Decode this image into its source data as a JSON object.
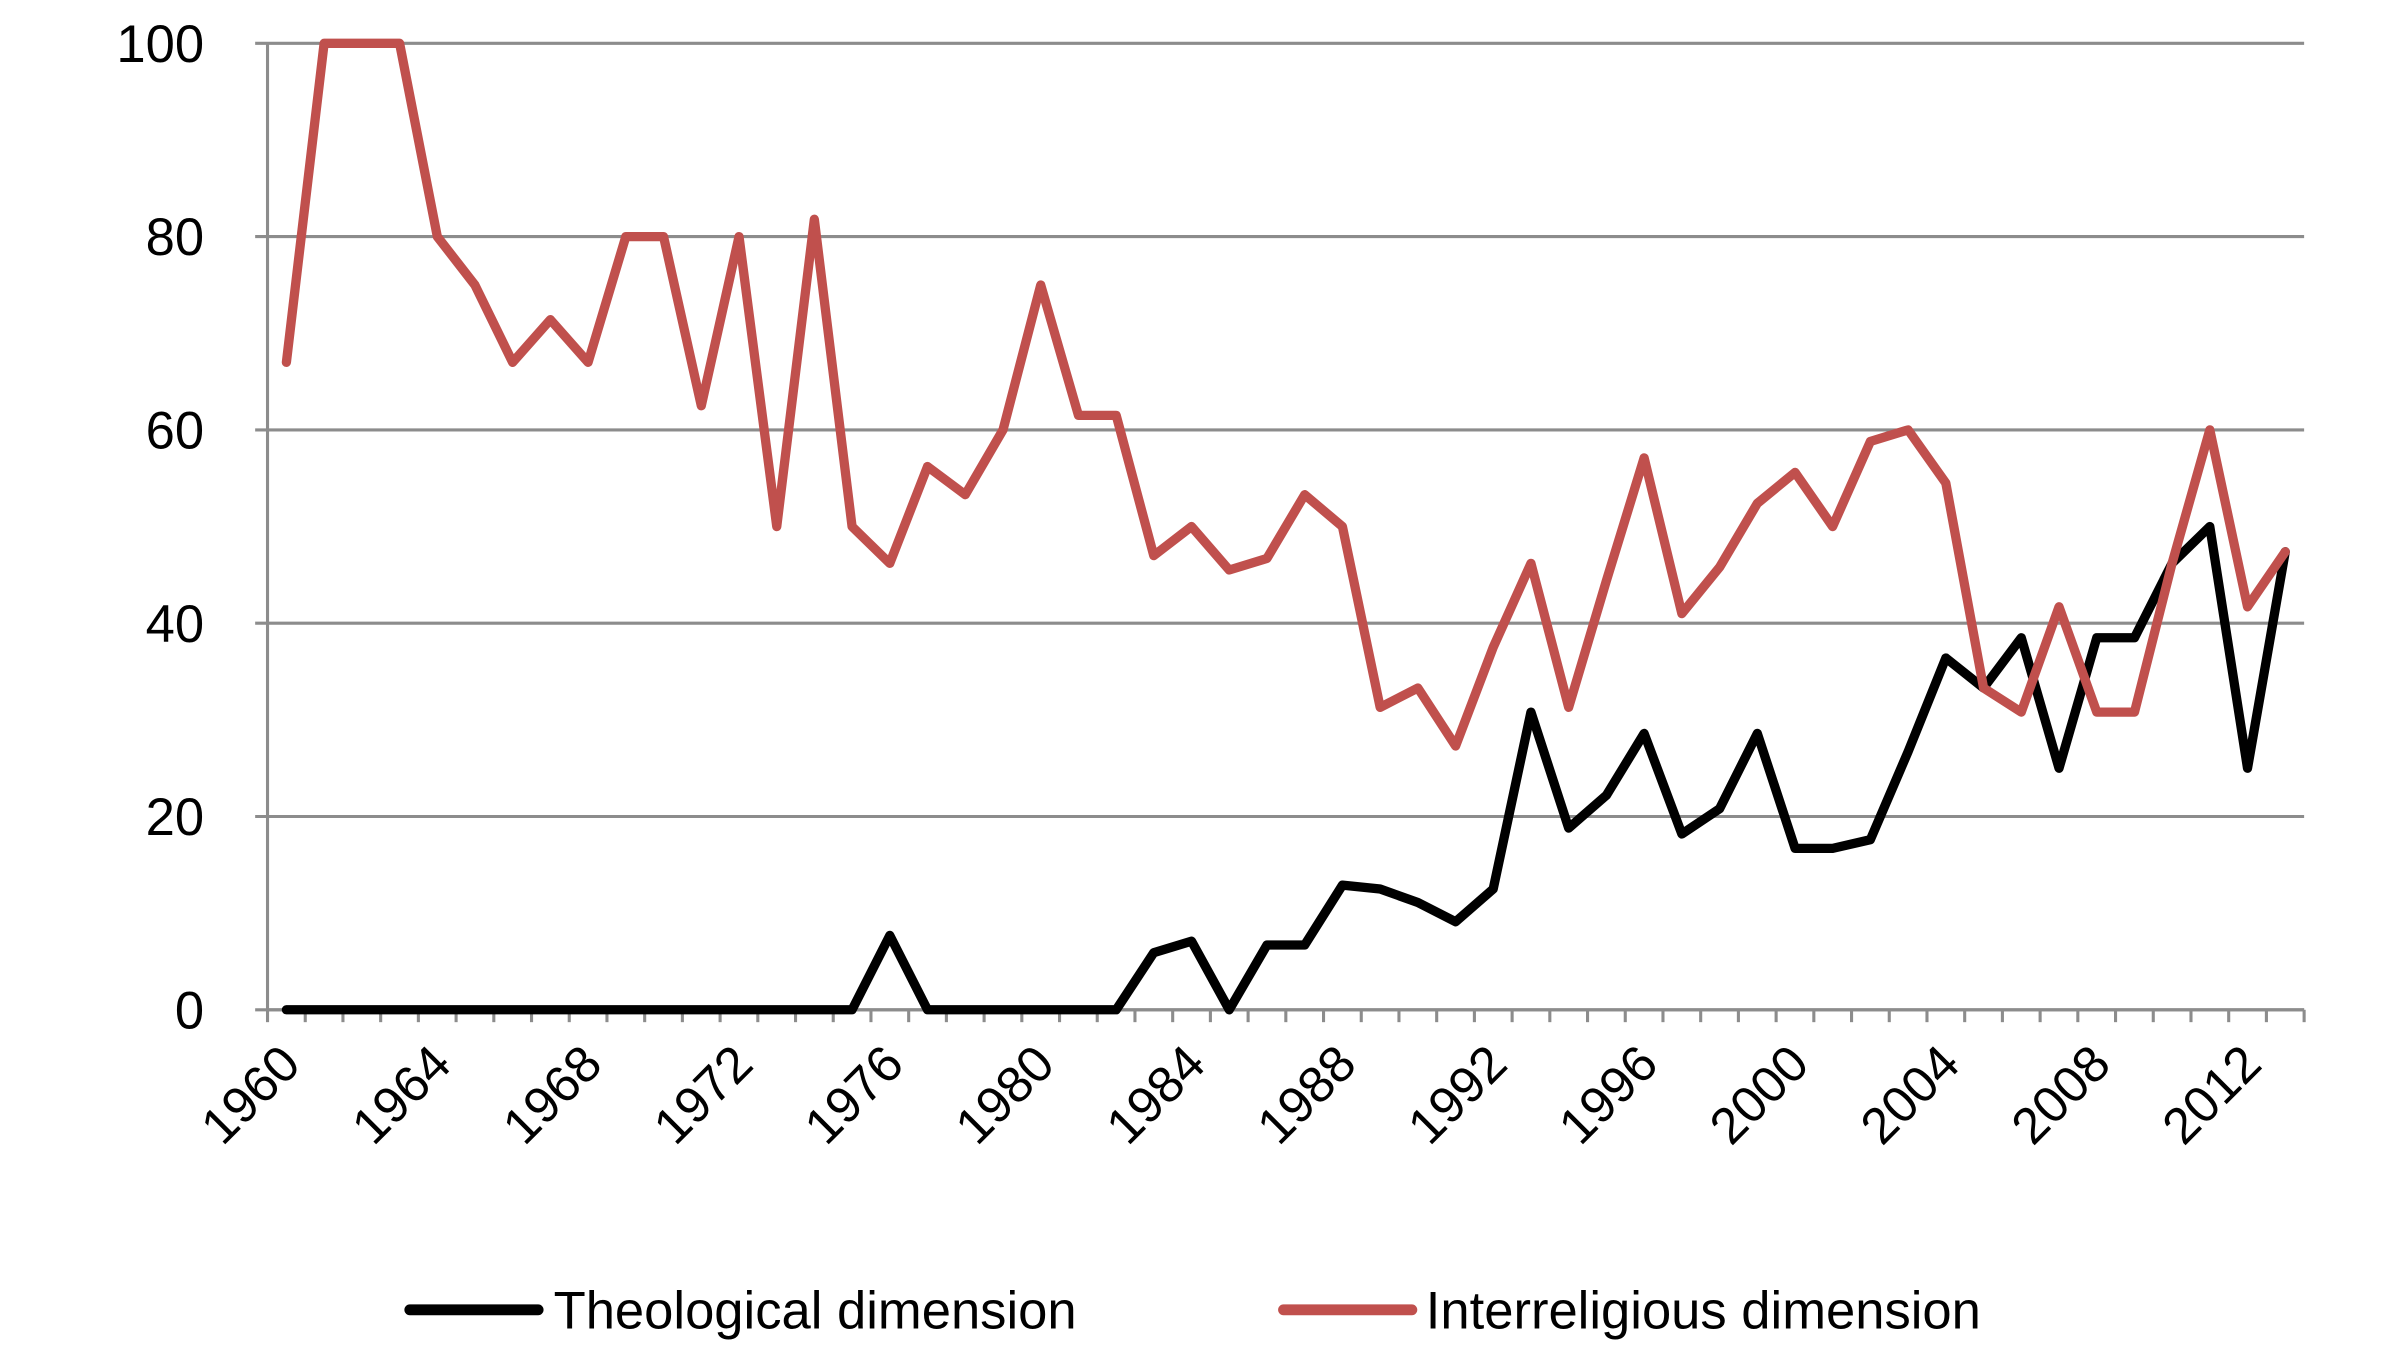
{
  "chart_data": {
    "type": "line",
    "title": "",
    "xlabel": "",
    "ylabel": "",
    "ylim": [
      0,
      100
    ],
    "yticks": [
      "0",
      "20",
      "40",
      "60",
      "80",
      "100"
    ],
    "grid": "horizontal",
    "legend_position": "bottom",
    "x": [
      1960,
      1961,
      1962,
      1963,
      1964,
      1965,
      1966,
      1967,
      1968,
      1969,
      1970,
      1971,
      1972,
      1973,
      1974,
      1975,
      1976,
      1977,
      1978,
      1979,
      1980,
      1981,
      1982,
      1983,
      1984,
      1985,
      1986,
      1987,
      1988,
      1989,
      1990,
      1991,
      1992,
      1993,
      1994,
      1995,
      1996,
      1997,
      1998,
      1999,
      2000,
      2001,
      2002,
      2003,
      2004,
      2005,
      2006,
      2007,
      2008,
      2009,
      2010,
      2011,
      2012,
      2013
    ],
    "xtick_labels": [
      "1960",
      "1964",
      "1968",
      "1972",
      "1976",
      "1980",
      "1984",
      "1988",
      "1992",
      "1996",
      "2000",
      "2004",
      "2008",
      "2012"
    ],
    "series": [
      {
        "name": "Theological dimension",
        "color": "#000000",
        "values": [
          0,
          0,
          0,
          0,
          0,
          0,
          0,
          0,
          0,
          0,
          0,
          0,
          0,
          0,
          0,
          0,
          7.7,
          0,
          0,
          0,
          0,
          0,
          0,
          5.9,
          7.1,
          0,
          6.7,
          6.7,
          12.9,
          12.5,
          11.1,
          9.1,
          12.5,
          30.8,
          18.8,
          22.2,
          28.6,
          18.2,
          20.8,
          28.6,
          16.7,
          16.7,
          17.6,
          26.7,
          36.4,
          33.3,
          38.5,
          25,
          38.5,
          38.5,
          46.2,
          50,
          25,
          47.4
        ]
      },
      {
        "name": "Interreligious dimension",
        "color": "#C0504D",
        "values": [
          67,
          100,
          100,
          100,
          80,
          75,
          67,
          71.4,
          67,
          80,
          80,
          62.5,
          80,
          50,
          81.8,
          50,
          46.2,
          56.2,
          53.3,
          60,
          75,
          61.5,
          61.5,
          47,
          50,
          45.5,
          46.7,
          53.3,
          50,
          31.3,
          33.3,
          27.3,
          37.5,
          46.2,
          31.3,
          44.4,
          57.1,
          41,
          45.8,
          52.4,
          55.6,
          50,
          58.8,
          60,
          54.5,
          33.3,
          30.8,
          41.7,
          30.8,
          30.8,
          46.2,
          60,
          41.7,
          47.4
        ]
      }
    ]
  }
}
